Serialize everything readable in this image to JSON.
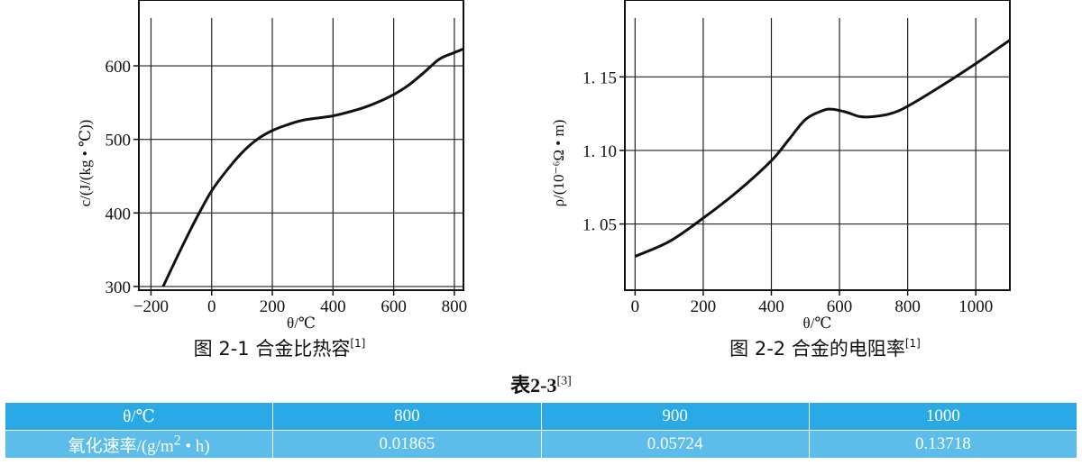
{
  "chart_data": [
    {
      "type": "line",
      "caption": "图 2-1 合金比热容",
      "caption_ref": "[1]",
      "xlabel": "θ/℃",
      "ylabel": "c/(J/(kg • ℃))",
      "xlim": [
        -240,
        830
      ],
      "ylim": [
        295,
        665
      ],
      "xticks": [
        -200,
        0,
        200,
        400,
        600,
        800
      ],
      "yticks": [
        300,
        400,
        500,
        600
      ],
      "grid": true,
      "series": [
        {
          "x": [
            -160,
            -100,
            -50,
            0,
            50,
            100,
            150,
            200,
            250,
            300,
            350,
            400,
            450,
            500,
            550,
            600,
            650,
            700,
            750,
            800,
            830
          ],
          "y": [
            300,
            352,
            393,
            430,
            458,
            482,
            500,
            512,
            520,
            526,
            529,
            532,
            537,
            543,
            551,
            561,
            574,
            591,
            609,
            618,
            623
          ]
        }
      ]
    },
    {
      "type": "line",
      "caption": "图 2-2 合金的电阻率",
      "caption_ref": "[1]",
      "xlabel": "θ/℃",
      "ylabel": "ρ/(10⁻⁶Ω • m)",
      "xlim": [
        -30,
        1100
      ],
      "ylim": [
        1.005,
        1.19
      ],
      "xticks": [
        0,
        200,
        400,
        600,
        800,
        1000
      ],
      "ytick_labels": [
        "1. 05",
        "1. 10",
        "1. 15"
      ],
      "yticks": [
        1.05,
        1.1,
        1.15
      ],
      "grid": true,
      "series": [
        {
          "x": [
            0,
            100,
            200,
            300,
            400,
            450,
            500,
            550,
            580,
            620,
            660,
            700,
            750,
            800,
            900,
            1000,
            1100
          ],
          "y": [
            1.028,
            1.038,
            1.054,
            1.072,
            1.093,
            1.107,
            1.121,
            1.127,
            1.128,
            1.126,
            1.123,
            1.123,
            1.125,
            1.13,
            1.144,
            1.159,
            1.175
          ]
        }
      ]
    }
  ],
  "table": {
    "title": "表2-3",
    "title_ref": "[3]",
    "header": [
      "θ/℃",
      "800",
      "900",
      "1000"
    ],
    "row_label_prefix": "氧化速率/(g/m",
    "row_label_sup": "2",
    "row_label_suffix": " • h)",
    "row_values": [
      "0.01865",
      "0.05724",
      "0.13718"
    ],
    "colors": {
      "header_bg": "#29a9e6",
      "row_bg": "#5dbdea",
      "text": "#ffffff"
    }
  }
}
